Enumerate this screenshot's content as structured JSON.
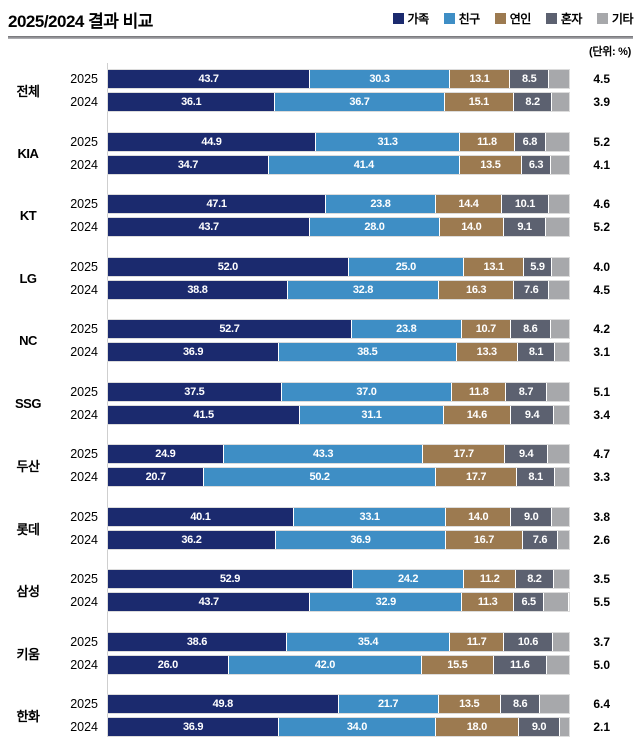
{
  "header": {
    "title": "2025/2024 결과 비교",
    "unit_note": "(단위: %)"
  },
  "legend": {
    "items": [
      {
        "key": "family",
        "label": "가족",
        "color": "#1b2a6e"
      },
      {
        "key": "friend",
        "label": "친구",
        "color": "#3e8ec5"
      },
      {
        "key": "couple",
        "label": "연인",
        "color": "#9c7a50"
      },
      {
        "key": "alone",
        "label": "혼자",
        "color": "#5c6170"
      },
      {
        "key": "other",
        "label": "기타",
        "color": "#a7a8ab"
      }
    ]
  },
  "chart_data": {
    "type": "bar",
    "orientation": "horizontal",
    "stacked": true,
    "title": "2025/2024 결과 비교",
    "unit": "%",
    "xlim": [
      0,
      100
    ],
    "series_names": [
      "가족",
      "친구",
      "연인",
      "혼자",
      "기타"
    ],
    "series_keys": [
      "family",
      "friend",
      "couple",
      "alone",
      "other"
    ],
    "series_colors": [
      "#1b2a6e",
      "#3e8ec5",
      "#9c7a50",
      "#5c6170",
      "#a7a8ab"
    ],
    "note": "기타 value is printed to the right of each bar",
    "groups": [
      {
        "label": "전체",
        "rows": [
          {
            "year": "2025",
            "values": [
              43.7,
              30.3,
              13.1,
              8.5,
              4.5
            ]
          },
          {
            "year": "2024",
            "values": [
              36.1,
              36.7,
              15.1,
              8.2,
              3.9
            ]
          }
        ]
      },
      {
        "label": "KIA",
        "rows": [
          {
            "year": "2025",
            "values": [
              44.9,
              31.3,
              11.8,
              6.8,
              5.2
            ]
          },
          {
            "year": "2024",
            "values": [
              34.7,
              41.4,
              13.5,
              6.3,
              4.1
            ]
          }
        ]
      },
      {
        "label": "KT",
        "rows": [
          {
            "year": "2025",
            "values": [
              47.1,
              23.8,
              14.4,
              10.1,
              4.6
            ]
          },
          {
            "year": "2024",
            "values": [
              43.7,
              28.0,
              14.0,
              9.1,
              5.2
            ]
          }
        ]
      },
      {
        "label": "LG",
        "rows": [
          {
            "year": "2025",
            "values": [
              52.0,
              25.0,
              13.1,
              5.9,
              4.0
            ]
          },
          {
            "year": "2024",
            "values": [
              38.8,
              32.8,
              16.3,
              7.6,
              4.5
            ]
          }
        ]
      },
      {
        "label": "NC",
        "rows": [
          {
            "year": "2025",
            "values": [
              52.7,
              23.8,
              10.7,
              8.6,
              4.2
            ]
          },
          {
            "year": "2024",
            "values": [
              36.9,
              38.5,
              13.3,
              8.1,
              3.1
            ]
          }
        ]
      },
      {
        "label": "SSG",
        "rows": [
          {
            "year": "2025",
            "values": [
              37.5,
              37.0,
              11.8,
              8.7,
              5.1
            ]
          },
          {
            "year": "2024",
            "values": [
              41.5,
              31.1,
              14.6,
              9.4,
              3.4
            ]
          }
        ]
      },
      {
        "label": "두산",
        "rows": [
          {
            "year": "2025",
            "values": [
              24.9,
              43.3,
              17.7,
              9.4,
              4.7
            ]
          },
          {
            "year": "2024",
            "values": [
              20.7,
              50.2,
              17.7,
              8.1,
              3.3
            ]
          }
        ]
      },
      {
        "label": "롯데",
        "rows": [
          {
            "year": "2025",
            "values": [
              40.1,
              33.1,
              14.0,
              9.0,
              3.8
            ]
          },
          {
            "year": "2024",
            "values": [
              36.2,
              36.9,
              16.7,
              7.6,
              2.6
            ]
          }
        ]
      },
      {
        "label": "삼성",
        "rows": [
          {
            "year": "2025",
            "values": [
              52.9,
              24.2,
              11.2,
              8.2,
              3.5
            ]
          },
          {
            "year": "2024",
            "values": [
              43.7,
              32.9,
              11.3,
              6.5,
              5.5
            ]
          }
        ]
      },
      {
        "label": "키움",
        "rows": [
          {
            "year": "2025",
            "values": [
              38.6,
              35.4,
              11.7,
              10.6,
              3.7
            ]
          },
          {
            "year": "2024",
            "values": [
              26.0,
              42.0,
              15.5,
              11.6,
              5.0
            ]
          }
        ]
      },
      {
        "label": "한화",
        "rows": [
          {
            "year": "2025",
            "values": [
              49.8,
              21.7,
              13.5,
              8.6,
              6.4
            ]
          },
          {
            "year": "2024",
            "values": [
              36.9,
              34.0,
              18.0,
              9.0,
              2.1
            ]
          }
        ]
      }
    ]
  }
}
